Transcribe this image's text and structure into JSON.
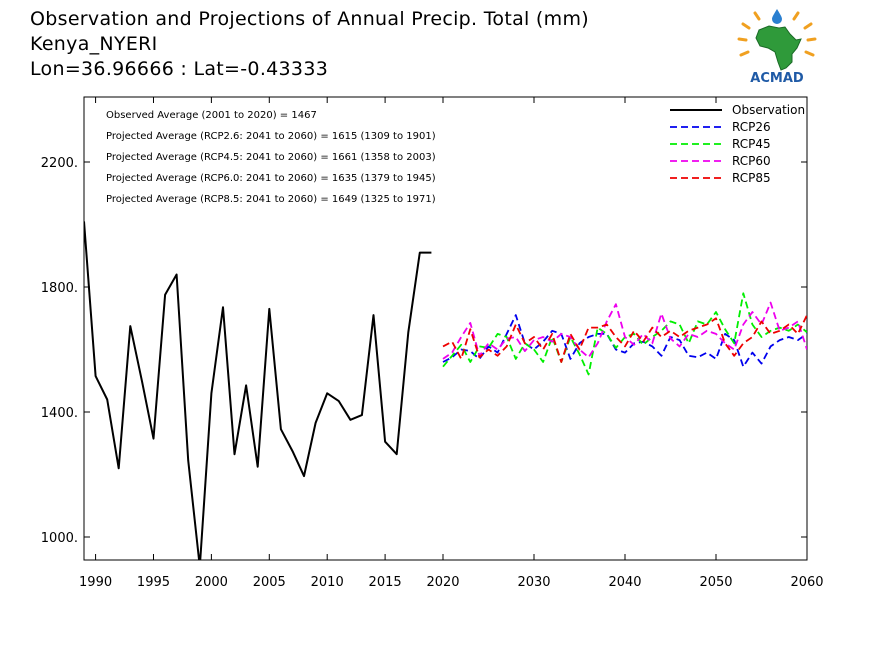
{
  "header": {
    "title": "Observation and Projections of Annual Precip. Total (mm)",
    "location": "Kenya_NYERI",
    "coords": "Lon=36.96666 : Lat=-0.43333"
  },
  "logo": {
    "text": "ACMAD",
    "icon": "africa-map-sun-logo"
  },
  "chart_data": {
    "type": "line",
    "title": "Observation and Projections of Annual Precip. Total (mm)",
    "xlim": [
      1989,
      2060
    ],
    "ylim": [
      925,
      2410
    ],
    "grid": false,
    "legend_position": "top-right",
    "x_ticks": [
      1990,
      1995,
      2000,
      2005,
      2010,
      2015,
      2020,
      2030,
      2040,
      2050,
      2060
    ],
    "y_ticks": [
      1000,
      1400,
      1800,
      2200
    ],
    "y_tick_labels": [
      "1000.",
      "1400.",
      "1800.",
      "2200."
    ],
    "annotations": [
      "Observed Average (2001 to 2020) = 1467",
      "Projected Average (RCP2.6: 2041 to 2060) = 1615 (1309 to 1901)",
      "Projected Average (RCP4.5: 2041 to 2060) = 1661 (1358 to 2003)",
      "Projected Average (RCP6.0: 2041 to 2060) = 1635 (1379 to 1945)",
      "Projected Average (RCP8.5: 2041 to 2060) = 1649 (1325 to 1971)"
    ],
    "series": [
      {
        "name": "Observation",
        "color": "#000000",
        "dash": "solid",
        "x": [
          1989,
          1990,
          1991,
          1992,
          1993,
          1994,
          1995,
          1996,
          1997,
          1998,
          1999,
          2000,
          2001,
          2002,
          2003,
          2004,
          2005,
          2006,
          2007,
          2008,
          2009,
          2010,
          2011,
          2012,
          2013,
          2014,
          2015,
          2016,
          2017,
          2018,
          2019
        ],
        "y": [
          2010,
          1515,
          1440,
          1220,
          1675,
          1500,
          1315,
          1775,
          1840,
          1245,
          905,
          1460,
          1735,
          1265,
          1485,
          1225,
          1730,
          1345,
          1275,
          1195,
          1365,
          1460,
          1435,
          1375,
          1390,
          1710,
          1305,
          1265,
          1655,
          1910,
          1910
        ]
      },
      {
        "name": "RCP26",
        "color": "#0000ee",
        "dash": "dashed",
        "x": [
          2020,
          2021,
          2022,
          2023,
          2024,
          2025,
          2026,
          2027,
          2028,
          2029,
          2030,
          2031,
          2032,
          2033,
          2034,
          2035,
          2036,
          2037,
          2038,
          2039,
          2040,
          2041,
          2042,
          2043,
          2044,
          2045,
          2046,
          2047,
          2048,
          2049,
          2050,
          2051,
          2052,
          2053,
          2054,
          2055,
          2056,
          2057,
          2058,
          2059,
          2060
        ],
        "y": [
          1560,
          1575,
          1600,
          1595,
          1570,
          1610,
          1590,
          1650,
          1710,
          1620,
          1600,
          1625,
          1660,
          1650,
          1570,
          1620,
          1640,
          1650,
          1650,
          1600,
          1590,
          1620,
          1625,
          1610,
          1580,
          1640,
          1630,
          1580,
          1575,
          1590,
          1570,
          1650,
          1630,
          1545,
          1590,
          1555,
          1610,
          1630,
          1640,
          1630,
          1650
        ]
      },
      {
        "name": "RCP45",
        "color": "#00ee00",
        "dash": "dashed",
        "x": [
          2020,
          2021,
          2022,
          2023,
          2024,
          2025,
          2026,
          2027,
          2028,
          2029,
          2030,
          2031,
          2032,
          2033,
          2034,
          2035,
          2036,
          2037,
          2038,
          2039,
          2040,
          2041,
          2042,
          2043,
          2044,
          2045,
          2046,
          2047,
          2048,
          2049,
          2050,
          2051,
          2052,
          2053,
          2054,
          2055,
          2056,
          2057,
          2058,
          2059,
          2060
        ],
        "y": [
          1545,
          1580,
          1615,
          1560,
          1610,
          1605,
          1650,
          1640,
          1570,
          1620,
          1600,
          1560,
          1640,
          1560,
          1640,
          1585,
          1520,
          1670,
          1650,
          1605,
          1640,
          1650,
          1615,
          1640,
          1660,
          1690,
          1680,
          1620,
          1690,
          1680,
          1720,
          1665,
          1620,
          1780,
          1680,
          1640,
          1660,
          1670,
          1660,
          1680,
          1655
        ]
      },
      {
        "name": "RCP60",
        "color": "#ee00ee",
        "dash": "dashed",
        "x": [
          2020,
          2021,
          2022,
          2023,
          2024,
          2025,
          2026,
          2027,
          2028,
          2029,
          2030,
          2031,
          2032,
          2033,
          2034,
          2035,
          2036,
          2037,
          2038,
          2039,
          2040,
          2041,
          2042,
          2043,
          2044,
          2045,
          2046,
          2047,
          2048,
          2049,
          2050,
          2051,
          2052,
          2053,
          2054,
          2055,
          2056,
          2057,
          2058,
          2059,
          2060
        ],
        "y": [
          1570,
          1590,
          1640,
          1685,
          1580,
          1620,
          1600,
          1635,
          1640,
          1595,
          1630,
          1640,
          1625,
          1650,
          1640,
          1600,
          1575,
          1620,
          1690,
          1745,
          1640,
          1615,
          1650,
          1620,
          1715,
          1635,
          1610,
          1650,
          1640,
          1660,
          1650,
          1620,
          1600,
          1680,
          1720,
          1680,
          1750,
          1660,
          1670,
          1690,
          1600
        ]
      },
      {
        "name": "RCP85",
        "color": "#ee0000",
        "dash": "dashed",
        "x": [
          2020,
          2021,
          2022,
          2023,
          2024,
          2025,
          2026,
          2027,
          2028,
          2029,
          2030,
          2031,
          2032,
          2033,
          2034,
          2035,
          2036,
          2037,
          2038,
          2039,
          2040,
          2041,
          2042,
          2043,
          2044,
          2045,
          2046,
          2047,
          2048,
          2049,
          2050,
          2051,
          2052,
          2053,
          2054,
          2055,
          2056,
          2057,
          2058,
          2059,
          2060
        ],
        "y": [
          1610,
          1625,
          1570,
          1665,
          1575,
          1600,
          1580,
          1610,
          1680,
          1620,
          1640,
          1600,
          1650,
          1560,
          1650,
          1600,
          1670,
          1670,
          1680,
          1640,
          1610,
          1660,
          1625,
          1670,
          1640,
          1660,
          1640,
          1660,
          1670,
          1680,
          1700,
          1620,
          1580,
          1620,
          1640,
          1690,
          1650,
          1660,
          1680,
          1650,
          1710
        ]
      }
    ]
  }
}
